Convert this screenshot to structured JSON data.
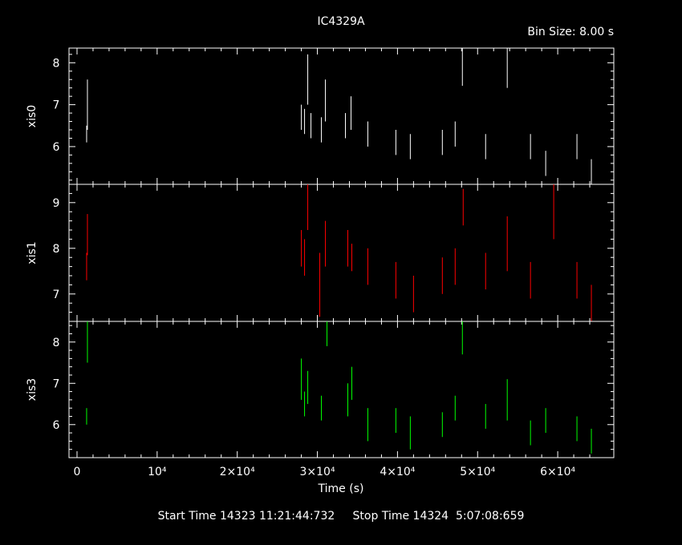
{
  "footer": {
    "start_label": "Start Time",
    "start_value": "14323 11:21:44:732",
    "stop_label": "Stop Time",
    "stop_value": "14324  5:07:08:659"
  },
  "chart_data": {
    "type": "scatter",
    "title": "IC4329A",
    "subtitle": "Bin Size: 8.00 s",
    "xlabel": "Time (s)",
    "xlim": [
      -1000,
      67000
    ],
    "x_ticks": [
      {
        "value": 0,
        "label": "0"
      },
      {
        "value": 10000,
        "label": "10⁴"
      },
      {
        "value": 20000,
        "label": "2×10⁴"
      },
      {
        "value": 30000,
        "label": "3×10⁴"
      },
      {
        "value": 40000,
        "label": "4×10⁴"
      },
      {
        "value": 50000,
        "label": "5×10⁴"
      },
      {
        "value": 60000,
        "label": "6×10⁴"
      }
    ],
    "panels": [
      {
        "name": "xis0",
        "color": "#ffffff",
        "ylim": [
          5.1,
          8.35
        ],
        "yticks": [
          6,
          7,
          8
        ],
        "segments": [
          {
            "x": 1200,
            "y": 6.3,
            "err": 0.2
          },
          {
            "x": 1300,
            "y": 7.0,
            "err": 0.6
          },
          {
            "x": 28000,
            "y": 6.7,
            "err": 0.3
          },
          {
            "x": 28400,
            "y": 6.6,
            "err": 0.3
          },
          {
            "x": 28800,
            "y": 7.6,
            "err": 0.6
          },
          {
            "x": 29200,
            "y": 6.5,
            "err": 0.3
          },
          {
            "x": 30500,
            "y": 6.4,
            "err": 0.3
          },
          {
            "x": 31000,
            "y": 7.1,
            "err": 0.5
          },
          {
            "x": 33500,
            "y": 6.5,
            "err": 0.3
          },
          {
            "x": 34200,
            "y": 6.8,
            "err": 0.4
          },
          {
            "x": 36300,
            "y": 6.3,
            "err": 0.3
          },
          {
            "x": 39800,
            "y": 6.1,
            "err": 0.3
          },
          {
            "x": 41600,
            "y": 6.0,
            "err": 0.3
          },
          {
            "x": 45600,
            "y": 6.1,
            "err": 0.3
          },
          {
            "x": 47200,
            "y": 6.3,
            "err": 0.3
          },
          {
            "x": 48100,
            "y": 7.9,
            "err": 0.45
          },
          {
            "x": 51000,
            "y": 6.0,
            "err": 0.3
          },
          {
            "x": 53700,
            "y": 7.9,
            "err": 0.5
          },
          {
            "x": 56600,
            "y": 6.0,
            "err": 0.3
          },
          {
            "x": 58500,
            "y": 5.6,
            "err": 0.3
          },
          {
            "x": 62400,
            "y": 6.0,
            "err": 0.3
          },
          {
            "x": 64200,
            "y": 5.4,
            "err": 0.3
          }
        ]
      },
      {
        "name": "xis1",
        "color": "#ff0000",
        "ylim": [
          6.4,
          9.4
        ],
        "yticks": [
          7,
          8,
          9
        ],
        "segments": [
          {
            "x": 1200,
            "y": 7.6,
            "err": 0.3
          },
          {
            "x": 1300,
            "y": 8.3,
            "err": 0.45
          },
          {
            "x": 28000,
            "y": 8.0,
            "err": 0.4
          },
          {
            "x": 28400,
            "y": 7.8,
            "err": 0.4
          },
          {
            "x": 28800,
            "y": 8.9,
            "err": 0.5
          },
          {
            "x": 30300,
            "y": 7.2,
            "err": 0.7
          },
          {
            "x": 31000,
            "y": 8.1,
            "err": 0.5
          },
          {
            "x": 33800,
            "y": 8.0,
            "err": 0.4
          },
          {
            "x": 34300,
            "y": 7.8,
            "err": 0.3
          },
          {
            "x": 36300,
            "y": 7.6,
            "err": 0.4
          },
          {
            "x": 39800,
            "y": 7.3,
            "err": 0.4
          },
          {
            "x": 42000,
            "y": 7.0,
            "err": 0.4
          },
          {
            "x": 45600,
            "y": 7.4,
            "err": 0.4
          },
          {
            "x": 47200,
            "y": 7.6,
            "err": 0.4
          },
          {
            "x": 48200,
            "y": 8.9,
            "err": 0.4
          },
          {
            "x": 51000,
            "y": 7.5,
            "err": 0.4
          },
          {
            "x": 53700,
            "y": 8.1,
            "err": 0.6
          },
          {
            "x": 56600,
            "y": 7.3,
            "err": 0.4
          },
          {
            "x": 59500,
            "y": 8.8,
            "err": 0.6
          },
          {
            "x": 62400,
            "y": 7.3,
            "err": 0.4
          },
          {
            "x": 64200,
            "y": 6.8,
            "err": 0.4
          }
        ]
      },
      {
        "name": "xis3",
        "color": "#00ff00",
        "ylim": [
          5.2,
          8.5
        ],
        "yticks": [
          6,
          7,
          8
        ],
        "segments": [
          {
            "x": 1200,
            "y": 6.2,
            "err": 0.2
          },
          {
            "x": 1300,
            "y": 8.0,
            "err": 0.5
          },
          {
            "x": 28000,
            "y": 7.1,
            "err": 0.5
          },
          {
            "x": 28400,
            "y": 6.5,
            "err": 0.3
          },
          {
            "x": 28800,
            "y": 6.9,
            "err": 0.4
          },
          {
            "x": 30500,
            "y": 6.4,
            "err": 0.3
          },
          {
            "x": 31200,
            "y": 8.2,
            "err": 0.3
          },
          {
            "x": 33800,
            "y": 6.6,
            "err": 0.4
          },
          {
            "x": 34300,
            "y": 7.0,
            "err": 0.4
          },
          {
            "x": 36300,
            "y": 6.0,
            "err": 0.4
          },
          {
            "x": 39800,
            "y": 6.1,
            "err": 0.3
          },
          {
            "x": 41600,
            "y": 5.8,
            "err": 0.4
          },
          {
            "x": 45600,
            "y": 6.0,
            "err": 0.3
          },
          {
            "x": 47200,
            "y": 6.4,
            "err": 0.3
          },
          {
            "x": 48100,
            "y": 8.1,
            "err": 0.4
          },
          {
            "x": 51000,
            "y": 6.2,
            "err": 0.3
          },
          {
            "x": 53700,
            "y": 6.6,
            "err": 0.5
          },
          {
            "x": 56600,
            "y": 5.8,
            "err": 0.3
          },
          {
            "x": 58500,
            "y": 6.1,
            "err": 0.3
          },
          {
            "x": 62400,
            "y": 5.9,
            "err": 0.3
          },
          {
            "x": 64200,
            "y": 5.6,
            "err": 0.3
          }
        ]
      }
    ]
  }
}
